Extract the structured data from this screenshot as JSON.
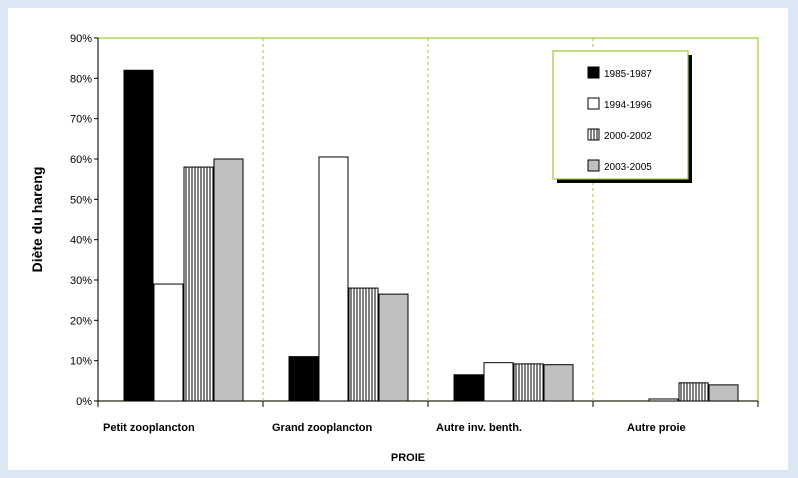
{
  "chart_data": {
    "type": "bar",
    "categories": [
      "Petit zooplancton",
      "Grand zooplancton",
      "Autre inv. benth.",
      "Autre proie"
    ],
    "series": [
      {
        "name": "1985-1987",
        "values": [
          82,
          11,
          6.5,
          0
        ],
        "color": "#000000",
        "pattern": "solid"
      },
      {
        "name": "1994-1996",
        "values": [
          29,
          60.5,
          9.5,
          0.5
        ],
        "color": "#ffffff",
        "pattern": "solid"
      },
      {
        "name": "2000-2002",
        "values": [
          58,
          28,
          9.2,
          4.5
        ],
        "color": "#ffffff",
        "pattern": "vertical-lines"
      },
      {
        "name": "2003-2005",
        "values": [
          60,
          26.5,
          9,
          4
        ],
        "color": "#c0c0c0",
        "pattern": "solid"
      }
    ],
    "yticks": [
      "0%",
      "10%",
      "20%",
      "30%",
      "40%",
      "50%",
      "60%",
      "70%",
      "80%",
      "90%"
    ],
    "ylim": [
      0,
      90
    ],
    "xlabel": "PROIE",
    "ylabel": "Diète du hareng",
    "legend_position": "top-right",
    "frame_color": "#9acd32"
  }
}
